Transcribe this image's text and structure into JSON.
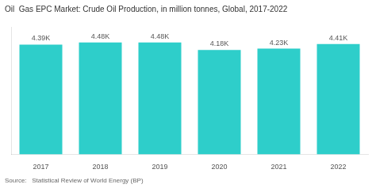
{
  "chart_data": {
    "type": "bar",
    "title": "Oil  Gas EPC Market: Crude Oil Production, in million tonnes, Global, 2017-2022",
    "source": "Source:   Statistical Review of World Energy (BP)",
    "categories": [
      "2017",
      "2018",
      "2019",
      "2020",
      "2021",
      "2022"
    ],
    "values": [
      4390,
      4480,
      4480,
      4180,
      4230,
      4410
    ],
    "value_labels": [
      "4.39K",
      "4.48K",
      "4.48K",
      "4.18K",
      "4.23K",
      "4.41K"
    ],
    "data_labels": true,
    "color": "#2ECECA",
    "ylim": [
      0,
      5100
    ],
    "tick_labels": "x",
    "grid": false
  }
}
